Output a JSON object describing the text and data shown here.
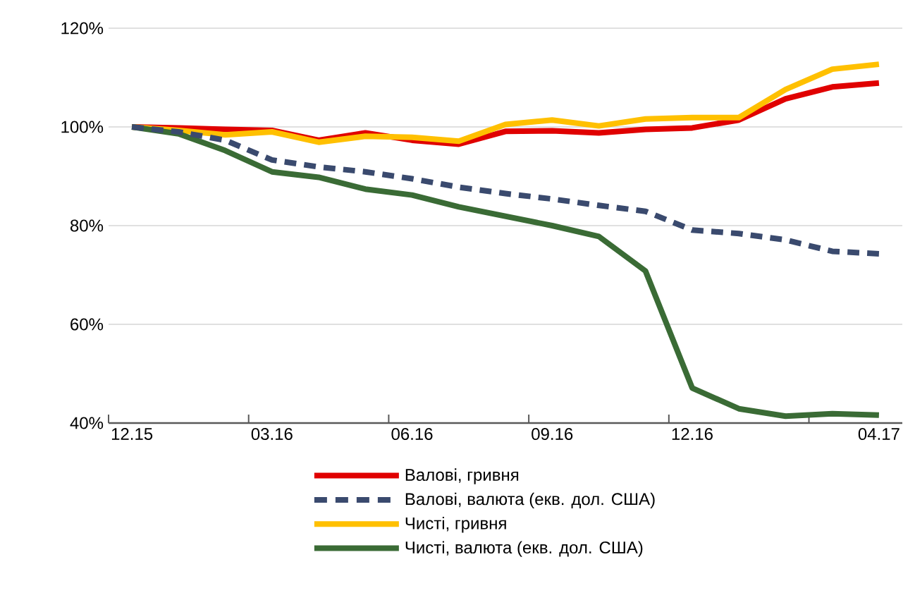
{
  "chart_data": {
    "type": "line",
    "categories": [
      "12.15",
      null,
      null,
      "03.16",
      null,
      null,
      "06.16",
      null,
      null,
      "09.16",
      null,
      null,
      "12.16",
      null,
      null,
      null,
      "04.17"
    ],
    "series": [
      {
        "name": "Валові, гривня",
        "color": "#e00000",
        "line_style": "solid",
        "values": [
          100,
          99.8,
          99.5,
          99.3,
          97.3,
          98.8,
          97.3,
          96.5,
          99.1,
          99.2,
          98.8,
          99.5,
          99.8,
          101.4,
          105.7,
          108.1,
          108.9
        ]
      },
      {
        "name": "Валові, валюта (екв. дол. США)",
        "color": "#3a4a6e",
        "line_style": "dashed",
        "values": [
          100,
          99,
          97.3,
          93.3,
          91.9,
          90.9,
          89.5,
          87.8,
          86.5,
          85.4,
          84.1,
          82.9,
          79.1,
          78.4,
          77.1,
          74.8,
          74.3
        ]
      },
      {
        "name": "Чисті, гривня",
        "color": "#ffc000",
        "line_style": "solid",
        "values": [
          100,
          99.3,
          98.4,
          99,
          96.9,
          98.1,
          97.9,
          97.1,
          100.5,
          101.4,
          100.2,
          101.6,
          101.9,
          101.9,
          107.6,
          111.7,
          112.7
        ]
      },
      {
        "name": "Чисті, валюта (екв. дол. США)",
        "color": "#3a6b35",
        "line_style": "solid",
        "values": [
          100,
          98.6,
          95.2,
          90.9,
          89.8,
          87.4,
          86.2,
          83.8,
          81.9,
          80,
          77.8,
          70.8,
          47.1,
          42.9,
          41.4,
          41.9,
          41.6
        ]
      }
    ],
    "ylim": [
      40,
      120
    ],
    "yticks": [
      {
        "value": 40,
        "label": "40%"
      },
      {
        "value": 60,
        "label": "60%"
      },
      {
        "value": 80,
        "label": "80%"
      },
      {
        "value": 100,
        "label": "100%"
      },
      {
        "value": 120,
        "label": "120%"
      }
    ],
    "grid": "y",
    "legend": "bottom",
    "marker": "none"
  }
}
